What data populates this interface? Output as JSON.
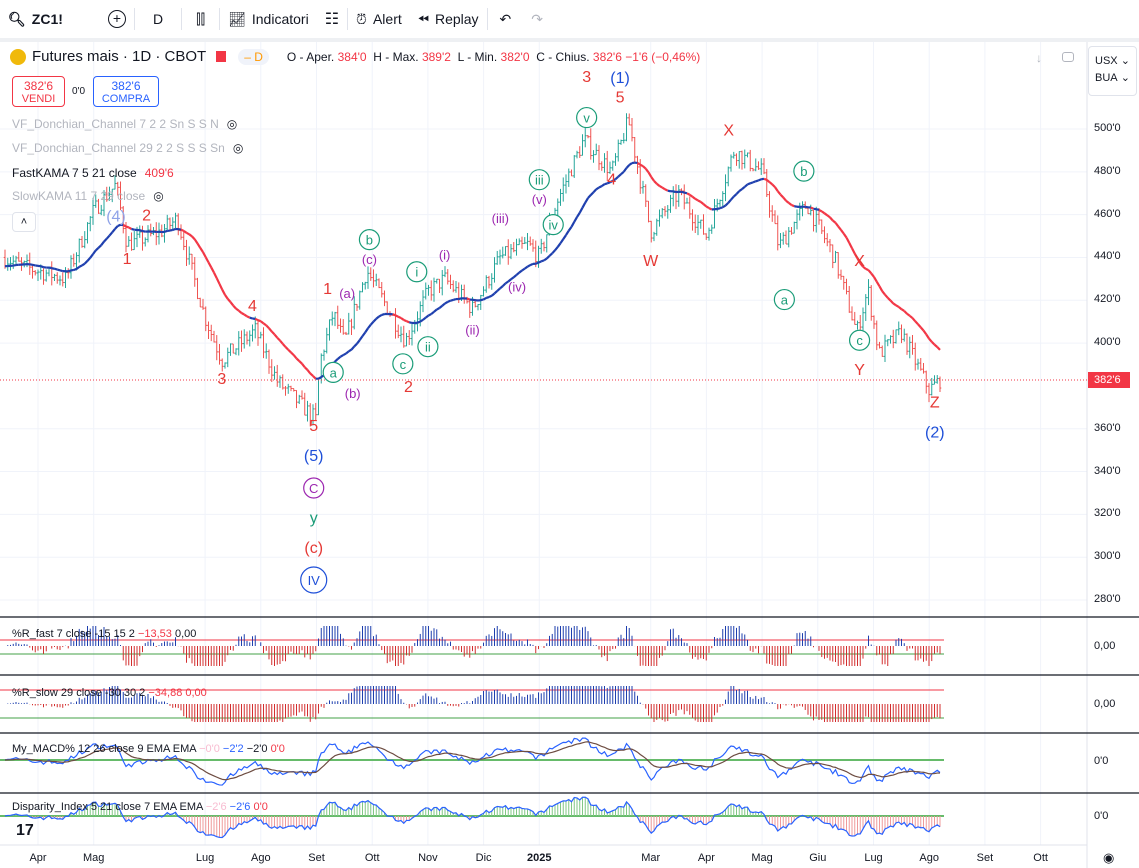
{
  "toolbar": {
    "symbol": "ZC1!",
    "interval": "D",
    "indicators": "Indicatori",
    "alert": "Alert",
    "replay": "Replay"
  },
  "legend": {
    "title": "Futures mais · 1D · CBOT",
    "badge": "D",
    "o_label": "O - Aper.",
    "o": "384'0",
    "h_label": "H - Max.",
    "h": "389'2",
    "l_label": "L - Min.",
    "l": "382'0",
    "c_label": "C - Chius.",
    "c": "382'6",
    "change": "−1'6 (−0,46%)"
  },
  "trade": {
    "sell_price": "382'6",
    "sell_label": "VENDI",
    "spread": "0'0",
    "buy_price": "382'6",
    "buy_label": "COMPRA"
  },
  "indicators": [
    {
      "label": "VF_Donchian_Channel 7 2 2 Sn S S N"
    },
    {
      "label": "VF_Donchian_Channel 29 2 2 S S S Sn"
    },
    {
      "label": "FastKAMA 7 5 21 close",
      "value": "409'6"
    },
    {
      "label": "SlowKAMA 11 7 29 close"
    }
  ],
  "axis": {
    "currency": "USX",
    "unit": "BUA",
    "last_price": "382'6",
    "ticks": [
      "500'0",
      "480'0",
      "460'0",
      "440'0",
      "420'0",
      "400'0",
      "360'0",
      "340'0",
      "320'0",
      "300'0",
      "280'0"
    ],
    "tick_values": [
      500,
      480,
      460,
      440,
      420,
      400,
      360,
      340,
      320,
      300,
      280
    ]
  },
  "panes": [
    {
      "label": "%R_fast 7 close -15 15 2",
      "v1": "−13,53",
      "v2": "0,00",
      "axis": "0,00"
    },
    {
      "label": "%R_slow 29 close -30 30 2",
      "v1": "−34,88",
      "v2": "0,00",
      "axis": "0,00"
    },
    {
      "label": "My_MACD% 12 26 close 9 EMA EMA",
      "v0": "−0'0",
      "v1": "−2'2",
      "v2": "−2'0",
      "v3": "0'0",
      "axis": "0'0"
    },
    {
      "label": "Disparity_Index 5 21 close 7 EMA EMA",
      "v0": "−2'6",
      "v1": "−2'6",
      "v2": "0'0",
      "axis": "0'0"
    }
  ],
  "xaxis": [
    {
      "t": "Apr",
      "m": 0
    },
    {
      "t": "Mag",
      "m": 1
    },
    {
      "t": "Lug",
      "m": 3
    },
    {
      "t": "Ago",
      "m": 4
    },
    {
      "t": "Set",
      "m": 5
    },
    {
      "t": "Ott",
      "m": 6
    },
    {
      "t": "Nov",
      "m": 7
    },
    {
      "t": "Dic",
      "m": 8
    },
    {
      "t": "2025",
      "m": 9
    },
    {
      "t": "Mar",
      "m": 11
    },
    {
      "t": "Apr",
      "m": 12
    },
    {
      "t": "Mag",
      "m": 13
    },
    {
      "t": "Giu",
      "m": 14
    },
    {
      "t": "Lug",
      "m": 15
    },
    {
      "t": "Ago",
      "m": 16
    },
    {
      "t": "Set",
      "m": 17
    },
    {
      "t": "Ott",
      "m": 18
    }
  ],
  "colors": {
    "up": "#26a69a",
    "down": "#ef5350",
    "blue": "#1e3fae",
    "red": "#f23645",
    "wave_red": "#e53935",
    "wave_blue": "#1e4fd8",
    "wave_purple": "#9c27b0",
    "wave_green": "#1a9c78"
  },
  "chart_data": {
    "type": "candlestick",
    "x_unit": "months since Apr 2024",
    "ylim": [
      270,
      510
    ],
    "price_path": [
      [
        -0.6,
        440
      ],
      [
        -0.3,
        436
      ],
      [
        0.5,
        430
      ],
      [
        1.0,
        462
      ],
      [
        1.4,
        474
      ],
      [
        1.6,
        446
      ],
      [
        2.2,
        452
      ],
      [
        2.5,
        458
      ],
      [
        3.0,
        412
      ],
      [
        3.3,
        392
      ],
      [
        3.9,
        406
      ],
      [
        4.3,
        382
      ],
      [
        5.0,
        364
      ],
      [
        5.05,
        390
      ],
      [
        5.3,
        414
      ],
      [
        5.5,
        400
      ],
      [
        5.9,
        434
      ],
      [
        6.6,
        401
      ],
      [
        7.0,
        424
      ],
      [
        7.3,
        430
      ],
      [
        7.8,
        416
      ],
      [
        8.3,
        440
      ],
      [
        8.8,
        446
      ],
      [
        9.0,
        440
      ],
      [
        9.3,
        465
      ],
      [
        9.8,
        495
      ],
      [
        10.3,
        480
      ],
      [
        10.6,
        504
      ],
      [
        11.0,
        452
      ],
      [
        11.5,
        470
      ],
      [
        12.0,
        450
      ],
      [
        12.5,
        490
      ],
      [
        13.0,
        480
      ],
      [
        13.3,
        445
      ],
      [
        13.8,
        465
      ],
      [
        14.3,
        440
      ],
      [
        14.7,
        405
      ],
      [
        14.9,
        425
      ],
      [
        15.1,
        395
      ],
      [
        15.5,
        405
      ],
      [
        16.0,
        378
      ],
      [
        16.2,
        383
      ]
    ]
  },
  "waves": [
    {
      "t": "(4)",
      "m": 1.4,
      "p": 481,
      "c": "wave_blue",
      "light": true
    },
    {
      "t": "2",
      "m": 1.95,
      "p": 476,
      "c": "wave_red"
    },
    {
      "t": "1",
      "m": 1.6,
      "p": 437,
      "c": "wave_red"
    },
    {
      "t": "3",
      "m": 3.3,
      "p": 381,
      "c": "wave_red"
    },
    {
      "t": "4",
      "m": 3.85,
      "p": 415,
      "c": "wave_red"
    },
    {
      "t": "5",
      "m": 4.95,
      "p": 359,
      "c": "wave_red"
    },
    {
      "t": "(5)",
      "m": 4.95,
      "p": 345,
      "c": "wave_blue"
    },
    {
      "t": "C",
      "m": 4.95,
      "p": 330,
      "c": "wave_purple",
      "circle": true
    },
    {
      "t": "y",
      "m": 4.95,
      "p": 316,
      "c": "wave_green"
    },
    {
      "t": "(c)",
      "m": 4.95,
      "p": 302,
      "c": "wave_red"
    },
    {
      "t": "IV",
      "m": 4.95,
      "p": 287,
      "c": "wave_blue",
      "circle": true
    },
    {
      "t": "1",
      "m": 5.2,
      "p": 423,
      "c": "wave_red"
    },
    {
      "t": "a",
      "m": 5.3,
      "p": 384,
      "c": "wave_green",
      "circle": true
    },
    {
      "t": "(a)",
      "m": 5.55,
      "p": 421,
      "c": "wave_purple"
    },
    {
      "t": "(b)",
      "m": 5.65,
      "p": 393,
      "c": "wave_purple"
    },
    {
      "t": "b",
      "m": 5.95,
      "p": 446,
      "c": "wave_green",
      "circle": true
    },
    {
      "t": "(c)",
      "m": 5.95,
      "p": 437,
      "c": "wave_purple"
    },
    {
      "t": "c",
      "m": 6.55,
      "p": 388,
      "c": "wave_green",
      "circle": true
    },
    {
      "t": "2",
      "m": 6.65,
      "p": 379,
      "c": "wave_red"
    },
    {
      "t": "i",
      "m": 6.8,
      "p": 431,
      "c": "wave_green",
      "circle": true
    },
    {
      "t": "ii",
      "m": 7.0,
      "p": 396,
      "c": "wave_green",
      "circle": true
    },
    {
      "t": "(i)",
      "m": 7.3,
      "p": 439,
      "c": "wave_purple"
    },
    {
      "t": "(ii)",
      "m": 7.8,
      "p": 404,
      "c": "wave_purple"
    },
    {
      "t": "(iii)",
      "m": 8.3,
      "p": 456,
      "c": "wave_purple"
    },
    {
      "t": "(iv)",
      "m": 8.6,
      "p": 424,
      "c": "wave_purple"
    },
    {
      "t": "iii",
      "m": 9.0,
      "p": 474,
      "c": "wave_green",
      "circle": true
    },
    {
      "t": "(v)",
      "m": 9.0,
      "p": 465,
      "c": "wave_purple"
    },
    {
      "t": "iv",
      "m": 9.25,
      "p": 453,
      "c": "wave_green",
      "circle": true
    },
    {
      "t": "v",
      "m": 9.85,
      "p": 503,
      "c": "wave_green",
      "circle": true
    },
    {
      "t": "3",
      "m": 9.85,
      "p": 522,
      "c": "wave_red"
    },
    {
      "t": "(1)",
      "m": 10.45,
      "p": 529,
      "c": "wave_blue"
    },
    {
      "t": "5",
      "m": 10.45,
      "p": 516,
      "c": "wave_red"
    },
    {
      "t": "4",
      "m": 10.3,
      "p": 474,
      "c": "wave_red"
    },
    {
      "t": "W",
      "m": 11.0,
      "p": 436,
      "c": "wave_red"
    },
    {
      "t": "X",
      "m": 12.4,
      "p": 497,
      "c": "wave_red"
    },
    {
      "t": "a",
      "m": 13.4,
      "p": 418,
      "c": "wave_green",
      "circle": true
    },
    {
      "t": "b",
      "m": 13.75,
      "p": 478,
      "c": "wave_green",
      "circle": true
    },
    {
      "t": "X",
      "m": 14.75,
      "p": 436,
      "c": "wave_red"
    },
    {
      "t": "c",
      "m": 14.75,
      "p": 399,
      "c": "wave_green",
      "circle": true
    },
    {
      "t": "Y",
      "m": 14.75,
      "p": 385,
      "c": "wave_red"
    },
    {
      "t": "Z",
      "m": 16.1,
      "p": 370,
      "c": "wave_red"
    },
    {
      "t": "(2)",
      "m": 16.1,
      "p": 356,
      "c": "wave_blue"
    }
  ]
}
